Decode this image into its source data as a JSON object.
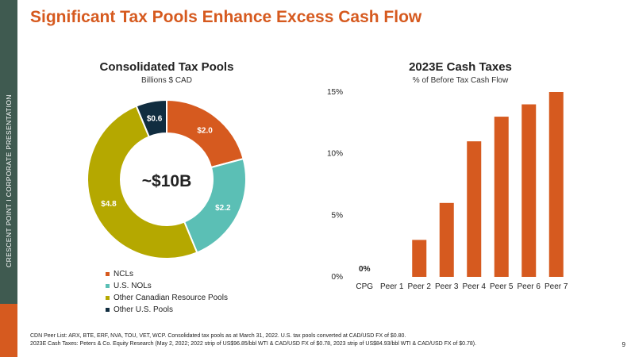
{
  "page_title": "Significant Tax Pools Enhance Excess Cash Flow",
  "sidebar_text": "CRESCENT POINT   I   CORPORATE PRESENTATION",
  "page_number": "9",
  "footnotes": [
    "CDN Peer List: ARX, BTE, ERF, NVA, TOU, VET, WCP. Consolidated tax pools as at March 31, 2022. U.S. tax pools converted at CAD/USD FX of $0.80.",
    "2023E Cash Taxes: Peters & Co. Equity Research (May 2, 2022; 2022 strip of US$96.85/bbl WTI & CAD/USD FX of $0.78, 2023 strip of US$84.93/bbl WTI & CAD/USD FX of $0.78)."
  ],
  "colors": {
    "accent": "#d65a1f",
    "sidebar": "#3f5a50",
    "ncls": "#d65a1f",
    "us_nols": "#5bbfb5",
    "other_canadian": "#b5a800",
    "other_us": "#112d40"
  },
  "chart_data": [
    {
      "type": "pie",
      "title": "Consolidated Tax Pools",
      "subtitle": "Billions $ CAD",
      "center_label": "~$10B",
      "legend_position": "bottom-left",
      "slices": [
        {
          "name": "NCLs",
          "value": 2.0,
          "label": "$2.0",
          "color": "#d65a1f"
        },
        {
          "name": "U.S. NOLs",
          "value": 2.2,
          "label": "$2.2",
          "color": "#5bbfb5"
        },
        {
          "name": "Other Canadian Resource Pools",
          "value": 4.8,
          "label": "$4.8",
          "color": "#b5a800"
        },
        {
          "name": "Other U.S. Pools",
          "value": 0.6,
          "label": "$0.6",
          "color": "#112d40"
        }
      ]
    },
    {
      "type": "bar",
      "title": "2023E Cash Taxes",
      "subtitle": "% of Before Tax Cash Flow",
      "categories": [
        "CPG",
        "Peer 1",
        "Peer 2",
        "Peer 3",
        "Peer 4",
        "Peer 5",
        "Peer 6",
        "Peer 7"
      ],
      "values": [
        0,
        0,
        3,
        6,
        11,
        13,
        14,
        15
      ],
      "data_labels": [
        "0%",
        "",
        "",
        "",
        "",
        "",
        "",
        ""
      ],
      "ylim": [
        0,
        15
      ],
      "yticks": [
        0,
        5,
        10,
        15
      ],
      "ytick_labels": [
        "0%",
        "5%",
        "10%",
        "15%"
      ],
      "grid": false,
      "color": "#d65a1f"
    }
  ]
}
